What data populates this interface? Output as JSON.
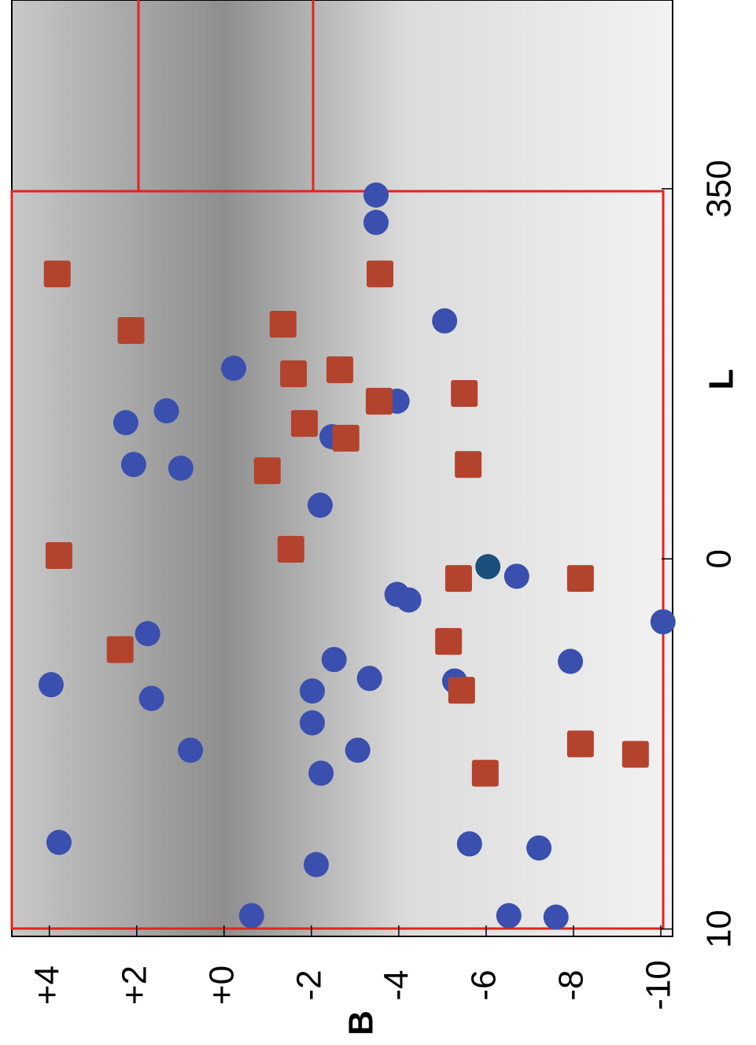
{
  "chart_data": {
    "type": "scatter",
    "x_label": "B",
    "y_label": "L",
    "xlim": [
      4.86,
      -10.27
    ],
    "ylim": [
      -15.1,
      10.2
    ],
    "xticks": [
      {
        "value": 4,
        "label": "+4"
      },
      {
        "value": 2,
        "label": "+2"
      },
      {
        "value": 0,
        "label": "+0"
      },
      -2,
      -4,
      -6,
      -8,
      -10
    ],
    "yticks": [
      10,
      0,
      {
        "value": -10,
        "label": "350"
      }
    ],
    "series": [
      {
        "color": "#3a4fae",
        "marker": "circle",
        "x": [
          -3.48,
          -3.48,
          -5.05,
          -0.22,
          -3.96,
          1.32,
          2.25,
          -2.47,
          2.07,
          0.99,
          -2.2,
          -6.7,
          -3.96,
          -4.23,
          -10.05,
          1.75,
          -7.93,
          -2.52,
          3.96,
          -3.33,
          -5.28,
          -2.02,
          1.66,
          -2.02,
          0.77,
          -3.06,
          -2.22,
          3.78,
          -5.62,
          -7.21,
          -2.11,
          -0.63,
          -6.52,
          -7.6
        ],
        "values": [
          -9.83,
          -9.09,
          -6.43,
          -5.15,
          -4.26,
          -4.0,
          -3.68,
          -3.3,
          -2.55,
          -2.45,
          -1.45,
          0.47,
          0.96,
          1.11,
          1.7,
          2.02,
          2.77,
          2.72,
          3.4,
          3.23,
          3.3,
          3.57,
          3.77,
          4.43,
          5.17,
          5.17,
          5.79,
          7.66,
          7.7,
          7.81,
          8.26,
          9.64,
          9.64,
          9.68
        ]
      },
      {
        "color": "#1c4f7c",
        "marker": "circle",
        "x": [
          -6.04
        ],
        "values": [
          0.21
        ]
      },
      {
        "color": "#b4432e",
        "marker": "square",
        "x": [
          3.82,
          -3.57,
          2.13,
          -1.35,
          -1.59,
          -2.65,
          -3.55,
          -5.5,
          -1.84,
          -2.79,
          -0.99,
          -5.59,
          3.78,
          -1.53,
          -5.37,
          -8.16,
          2.38,
          -5.14,
          -5.44,
          -8.16,
          -9.42,
          -5.98
        ],
        "values": [
          -7.7,
          -7.7,
          -6.17,
          -6.34,
          -5.0,
          -5.11,
          -4.26,
          -4.47,
          -3.66,
          -3.26,
          -2.38,
          -2.55,
          -0.09,
          -0.26,
          0.53,
          0.53,
          2.45,
          2.23,
          3.55,
          5.0,
          5.28,
          5.79
        ]
      }
    ]
  }
}
